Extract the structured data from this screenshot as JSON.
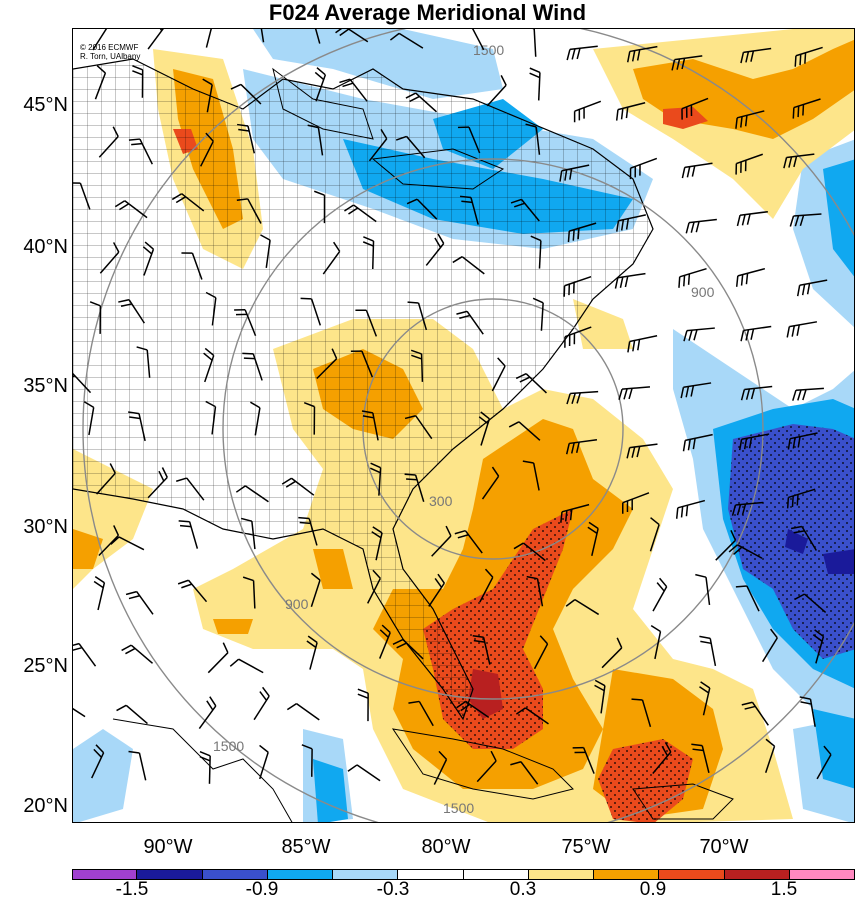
{
  "title": "F024 Average Meridional Wind",
  "credit": {
    "line1": "© 2016 ECMWF",
    "line2": "R. Torn, UAlbany"
  },
  "map": {
    "lat_labels": [
      "45°N",
      "40°N",
      "35°N",
      "30°N",
      "25°N",
      "20°N"
    ],
    "lon_labels": [
      "90°W",
      "85°W",
      "80°W",
      "75°W",
      "70°W"
    ],
    "range_ring_labels": [
      "300",
      "900",
      "1500"
    ],
    "shading_stipple": true
  },
  "colorbar": {
    "colors": [
      "#a040d0",
      "#1a1a9a",
      "#3a50cc",
      "#10a8f0",
      "#a8d8f8",
      "#ffffff",
      "#ffffff",
      "#fde58a",
      "#f5a000",
      "#ea4a1c",
      "#b82020",
      "#ff88c0"
    ],
    "tick_labels": [
      "-1.5",
      "-0.9",
      "-0.3",
      "0.3",
      "0.9",
      "1.5"
    ]
  },
  "colors": {
    "yellow": "#fde58a",
    "orange": "#f5a000",
    "red": "#ea4a1c",
    "darkred": "#b82020",
    "lightblue": "#a8d8f8",
    "blue": "#10a8f0",
    "royal": "#3a50cc",
    "navy": "#1a1a9a"
  }
}
